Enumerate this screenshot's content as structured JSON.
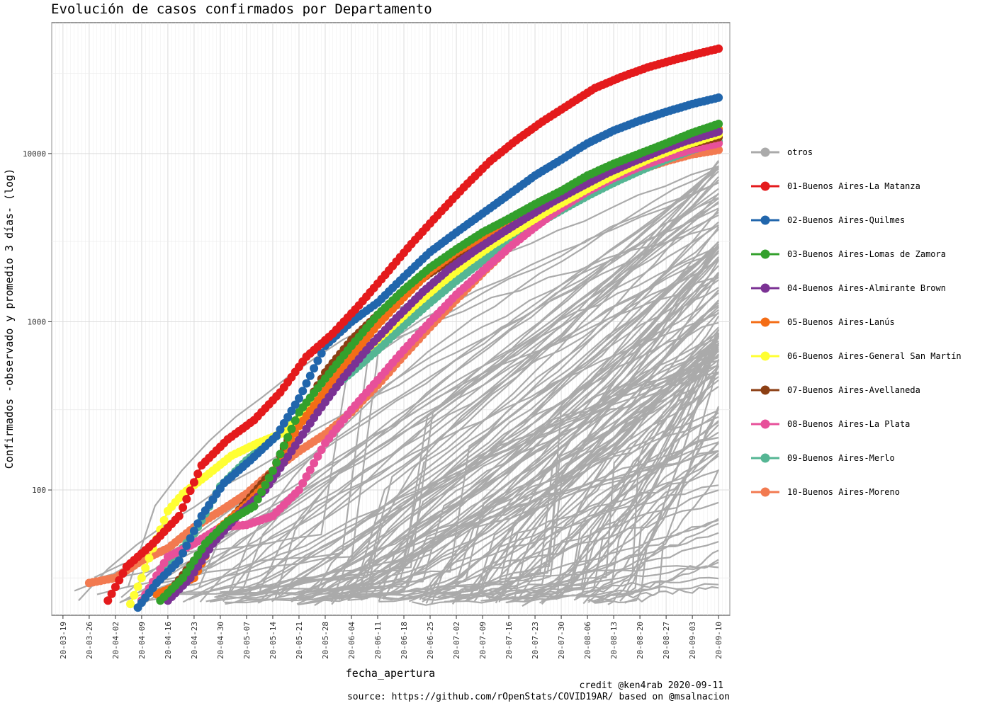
{
  "chart_data": {
    "type": "line",
    "title": "Evolución de casos confirmados por Departamento",
    "xlabel": "fecha_apertura",
    "ylabel": "Confirmados -observado y promedio 3 días- (log)",
    "y_scale": "log10",
    "ylim": [
      18,
      60000
    ],
    "xlim": [
      "2020-03-16",
      "2020-09-13"
    ],
    "y_ticks": [
      100,
      1000,
      10000
    ],
    "x_ticks": [
      "20-03-19",
      "20-03-26",
      "20-04-02",
      "20-04-09",
      "20-04-16",
      "20-04-23",
      "20-04-30",
      "20-05-07",
      "20-05-14",
      "20-05-21",
      "20-05-28",
      "20-06-04",
      "20-06-11",
      "20-06-18",
      "20-06-25",
      "20-07-02",
      "20-07-09",
      "20-07-16",
      "20-07-23",
      "20-07-30",
      "20-08-06",
      "20-08-13",
      "20-08-20",
      "20-08-27",
      "20-09-03",
      "20-09-10"
    ],
    "grid": true,
    "legend_position": "right",
    "series": [
      {
        "name": " otros",
        "color": "#AAAAAA",
        "points": []
      },
      {
        "name": "01-Buenos Aires-La Matanza",
        "color": "#E41A1C",
        "points": [
          [
            "2020-03-31",
            22
          ],
          [
            "2020-04-05",
            35
          ],
          [
            "2020-04-12",
            48
          ],
          [
            "2020-04-19",
            70
          ],
          [
            "2020-04-25",
            140
          ],
          [
            "2020-05-02",
            200
          ],
          [
            "2020-05-09",
            260
          ],
          [
            "2020-05-16",
            380
          ],
          [
            "2020-05-23",
            620
          ],
          [
            "2020-05-30",
            850
          ],
          [
            "2020-06-06",
            1250
          ],
          [
            "2020-06-13",
            1900
          ],
          [
            "2020-06-20",
            2900
          ],
          [
            "2020-06-27",
            4300
          ],
          [
            "2020-07-04",
            6300
          ],
          [
            "2020-07-11",
            9000
          ],
          [
            "2020-07-18",
            12000
          ],
          [
            "2020-07-25",
            15500
          ],
          [
            "2020-08-01",
            19500
          ],
          [
            "2020-08-08",
            24500
          ],
          [
            "2020-08-15",
            28500
          ],
          [
            "2020-08-22",
            32500
          ],
          [
            "2020-08-29",
            36000
          ],
          [
            "2020-09-05",
            39500
          ],
          [
            "2020-09-10",
            42000
          ]
        ]
      },
      {
        "name": "02-Buenos Aires-Quilmes",
        "color": "#2166AC",
        "points": [
          [
            "2020-04-08",
            20
          ],
          [
            "2020-04-13",
            28
          ],
          [
            "2020-04-19",
            38
          ],
          [
            "2020-04-25",
            70
          ],
          [
            "2020-05-01",
            110
          ],
          [
            "2020-05-08",
            150
          ],
          [
            "2020-05-15",
            210
          ],
          [
            "2020-05-21",
            350
          ],
          [
            "2020-05-28",
            720
          ],
          [
            "2020-06-04",
            1000
          ],
          [
            "2020-06-11",
            1300
          ],
          [
            "2020-06-18",
            1850
          ],
          [
            "2020-06-25",
            2600
          ],
          [
            "2020-07-02",
            3400
          ],
          [
            "2020-07-09",
            4400
          ],
          [
            "2020-07-16",
            5700
          ],
          [
            "2020-07-23",
            7400
          ],
          [
            "2020-07-30",
            9200
          ],
          [
            "2020-08-06",
            11500
          ],
          [
            "2020-08-13",
            13700
          ],
          [
            "2020-08-20",
            15700
          ],
          [
            "2020-08-27",
            17700
          ],
          [
            "2020-09-03",
            19700
          ],
          [
            "2020-09-10",
            21500
          ]
        ]
      },
      {
        "name": "03-Buenos Aires-Lomas de Zamora",
        "color": "#33A02C",
        "points": [
          [
            "2020-04-14",
            22
          ],
          [
            "2020-04-20",
            30
          ],
          [
            "2020-04-26",
            48
          ],
          [
            "2020-05-02",
            65
          ],
          [
            "2020-05-09",
            80
          ],
          [
            "2020-05-14",
            130
          ],
          [
            "2020-05-21",
            290
          ],
          [
            "2020-05-28",
            460
          ],
          [
            "2020-06-04",
            720
          ],
          [
            "2020-06-11",
            1100
          ],
          [
            "2020-06-18",
            1550
          ],
          [
            "2020-06-25",
            2100
          ],
          [
            "2020-07-02",
            2700
          ],
          [
            "2020-07-09",
            3400
          ],
          [
            "2020-07-16",
            4100
          ],
          [
            "2020-07-23",
            5000
          ],
          [
            "2020-07-30",
            6000
          ],
          [
            "2020-08-06",
            7400
          ],
          [
            "2020-08-13",
            8700
          ],
          [
            "2020-08-20",
            10000
          ],
          [
            "2020-08-27",
            11500
          ],
          [
            "2020-09-03",
            13300
          ],
          [
            "2020-09-10",
            15000
          ]
        ]
      },
      {
        "name": "04-Buenos Aires-Almirante Brown",
        "color": "#7B3294",
        "points": [
          [
            "2020-04-16",
            22
          ],
          [
            "2020-04-22",
            30
          ],
          [
            "2020-04-28",
            48
          ],
          [
            "2020-05-05",
            72
          ],
          [
            "2020-05-12",
            100
          ],
          [
            "2020-05-19",
            170
          ],
          [
            "2020-05-26",
            290
          ],
          [
            "2020-06-02",
            470
          ],
          [
            "2020-06-09",
            720
          ],
          [
            "2020-06-16",
            1050
          ],
          [
            "2020-06-23",
            1500
          ],
          [
            "2020-06-30",
            2050
          ],
          [
            "2020-07-07",
            2650
          ],
          [
            "2020-07-14",
            3350
          ],
          [
            "2020-07-21",
            4200
          ],
          [
            "2020-07-28",
            5200
          ],
          [
            "2020-08-04",
            6300
          ],
          [
            "2020-08-11",
            7600
          ],
          [
            "2020-08-18",
            8900
          ],
          [
            "2020-08-25",
            10300
          ],
          [
            "2020-09-01",
            11800
          ],
          [
            "2020-09-10",
            13500
          ]
        ]
      },
      {
        "name": "05-Buenos Aires-Lanús",
        "color": "#F46D16",
        "points": [
          [
            "2020-04-13",
            24
          ],
          [
            "2020-04-20",
            28
          ],
          [
            "2020-04-23",
            30
          ],
          [
            "2020-04-30",
            60
          ],
          [
            "2020-05-07",
            82
          ],
          [
            "2020-05-14",
            120
          ],
          [
            "2020-05-21",
            240
          ],
          [
            "2020-05-28",
            390
          ],
          [
            "2020-06-04",
            620
          ],
          [
            "2020-06-11",
            960
          ],
          [
            "2020-06-18",
            1400
          ],
          [
            "2020-06-25",
            2000
          ],
          [
            "2020-07-02",
            2600
          ],
          [
            "2020-07-09",
            3200
          ],
          [
            "2020-07-16",
            3900
          ],
          [
            "2020-07-23",
            4700
          ],
          [
            "2020-07-30",
            5700
          ],
          [
            "2020-08-06",
            6900
          ],
          [
            "2020-08-13",
            8100
          ],
          [
            "2020-08-20",
            9400
          ],
          [
            "2020-08-27",
            10800
          ],
          [
            "2020-09-03",
            12300
          ],
          [
            "2020-09-10",
            14000
          ]
        ]
      },
      {
        "name": "06-Buenos Aires-General San Martín",
        "color": "#FFFF33",
        "points": [
          [
            "2020-04-06",
            21
          ],
          [
            "2020-04-09",
            30
          ],
          [
            "2020-04-12",
            45
          ],
          [
            "2020-04-16",
            75
          ],
          [
            "2020-04-20",
            95
          ],
          [
            "2020-04-27",
            125
          ],
          [
            "2020-05-03",
            160
          ],
          [
            "2020-05-10",
            190
          ],
          [
            "2020-05-17",
            220
          ],
          [
            "2020-05-24",
            310
          ],
          [
            "2020-05-31",
            440
          ],
          [
            "2020-06-07",
            650
          ],
          [
            "2020-06-14",
            900
          ],
          [
            "2020-06-21",
            1250
          ],
          [
            "2020-06-28",
            1700
          ],
          [
            "2020-07-05",
            2250
          ],
          [
            "2020-07-12",
            2900
          ],
          [
            "2020-07-19",
            3600
          ],
          [
            "2020-07-26",
            4500
          ],
          [
            "2020-08-02",
            5500
          ],
          [
            "2020-08-09",
            6700
          ],
          [
            "2020-08-16",
            8000
          ],
          [
            "2020-08-23",
            9400
          ],
          [
            "2020-08-30",
            10800
          ],
          [
            "2020-09-06",
            12200
          ],
          [
            "2020-09-10",
            13000
          ]
        ]
      },
      {
        "name": "07-Buenos Aires-Avellaneda",
        "color": "#8C3F14",
        "points": [
          [
            "2020-04-16",
            24
          ],
          [
            "2020-04-23",
            38
          ],
          [
            "2020-04-30",
            58
          ],
          [
            "2020-05-07",
            85
          ],
          [
            "2020-05-14",
            130
          ],
          [
            "2020-05-21",
            270
          ],
          [
            "2020-05-28",
            500
          ],
          [
            "2020-06-04",
            780
          ],
          [
            "2020-06-11",
            1100
          ],
          [
            "2020-06-18",
            1500
          ],
          [
            "2020-06-25",
            1950
          ],
          [
            "2020-07-02",
            2450
          ],
          [
            "2020-07-09",
            3000
          ],
          [
            "2020-07-16",
            3700
          ],
          [
            "2020-07-23",
            4500
          ],
          [
            "2020-07-30",
            5400
          ],
          [
            "2020-08-06",
            6500
          ],
          [
            "2020-08-13",
            7700
          ],
          [
            "2020-08-20",
            9000
          ],
          [
            "2020-08-27",
            10300
          ],
          [
            "2020-09-03",
            11500
          ],
          [
            "2020-09-10",
            12500
          ]
        ]
      },
      {
        "name": "08-Buenos Aires-La Plata",
        "color": "#E7509A",
        "points": [
          [
            "2020-04-09",
            22
          ],
          [
            "2020-04-16",
            40
          ],
          [
            "2020-04-23",
            48
          ],
          [
            "2020-04-30",
            60
          ],
          [
            "2020-05-07",
            62
          ],
          [
            "2020-05-14",
            70
          ],
          [
            "2020-05-21",
            100
          ],
          [
            "2020-05-28",
            190
          ],
          [
            "2020-06-04",
            300
          ],
          [
            "2020-06-11",
            450
          ],
          [
            "2020-06-18",
            680
          ],
          [
            "2020-06-25",
            1000
          ],
          [
            "2020-07-02",
            1450
          ],
          [
            "2020-07-09",
            2000
          ],
          [
            "2020-07-16",
            2750
          ],
          [
            "2020-07-23",
            3650
          ],
          [
            "2020-07-30",
            4750
          ],
          [
            "2020-08-06",
            5950
          ],
          [
            "2020-08-13",
            7150
          ],
          [
            "2020-08-20",
            8350
          ],
          [
            "2020-08-27",
            9500
          ],
          [
            "2020-09-03",
            10600
          ],
          [
            "2020-09-10",
            11500
          ]
        ]
      },
      {
        "name": "09-Buenos Aires-Merlo",
        "color": "#55B694",
        "points": [
          [
            "2020-04-09",
            22
          ],
          [
            "2020-04-16",
            35
          ],
          [
            "2020-04-23",
            55
          ],
          [
            "2020-04-30",
            105
          ],
          [
            "2020-05-07",
            150
          ],
          [
            "2020-05-14",
            200
          ],
          [
            "2020-05-21",
            270
          ],
          [
            "2020-05-28",
            370
          ],
          [
            "2020-06-04",
            500
          ],
          [
            "2020-06-11",
            680
          ],
          [
            "2020-06-18",
            950
          ],
          [
            "2020-06-25",
            1300
          ],
          [
            "2020-07-02",
            1750
          ],
          [
            "2020-07-09",
            2300
          ],
          [
            "2020-07-16",
            2950
          ],
          [
            "2020-07-23",
            3750
          ],
          [
            "2020-07-30",
            4600
          ],
          [
            "2020-08-06",
            5600
          ],
          [
            "2020-08-13",
            6700
          ],
          [
            "2020-08-20",
            7900
          ],
          [
            "2020-08-27",
            9200
          ],
          [
            "2020-09-03",
            10500
          ],
          [
            "2020-09-10",
            11800
          ]
        ]
      },
      {
        "name": "10-Buenos Aires-Moreno",
        "color": "#F27A50",
        "points": [
          [
            "2020-03-26",
            28
          ],
          [
            "2020-04-02",
            30
          ],
          [
            "2020-04-09",
            38
          ],
          [
            "2020-04-16",
            45
          ],
          [
            "2020-04-23",
            60
          ],
          [
            "2020-04-30",
            75
          ],
          [
            "2020-05-07",
            95
          ],
          [
            "2020-05-14",
            130
          ],
          [
            "2020-05-21",
            170
          ],
          [
            "2020-05-28",
            215
          ],
          [
            "2020-06-04",
            290
          ],
          [
            "2020-06-11",
            420
          ],
          [
            "2020-06-18",
            630
          ],
          [
            "2020-06-25",
            930
          ],
          [
            "2020-07-02",
            1350
          ],
          [
            "2020-07-09",
            1950
          ],
          [
            "2020-07-16",
            2750
          ],
          [
            "2020-07-23",
            3700
          ],
          [
            "2020-07-30",
            4800
          ],
          [
            "2020-08-06",
            5900
          ],
          [
            "2020-08-13",
            7000
          ],
          [
            "2020-08-20",
            8000
          ],
          [
            "2020-08-27",
            9000
          ],
          [
            "2020-09-03",
            9900
          ],
          [
            "2020-09-10",
            10500
          ]
        ]
      }
    ]
  },
  "caption": {
    "credit": "credit @ken4rab 2020-09-11",
    "source": "source: https://github.com/rOpenStats/COVID19AR/ based on @msalnacion"
  }
}
